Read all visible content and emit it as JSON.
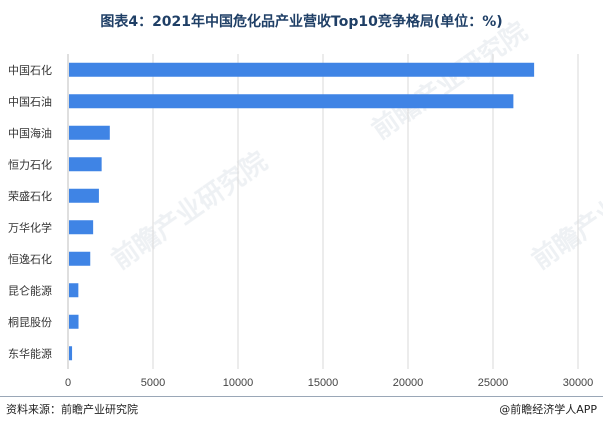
{
  "title": "图表4：2021年中国危化品产业营收Top10竞争格局(单位：%)",
  "source": "资料来源：前瞻产业研究院",
  "brand": "@前瞻经济学人APP",
  "watermark_text": "前瞻产业研究院",
  "colors": {
    "bar": "#3f84e5",
    "grid": "#d9d9d9",
    "axis": "#bfbfbf"
  },
  "chart_data": {
    "type": "bar",
    "orientation": "horizontal",
    "categories": [
      "中国石化",
      "中国石油",
      "中国海油",
      "恒力石化",
      "荣盛石化",
      "万华化学",
      "恒逸石化",
      "昆仑能源",
      "桐昆股份",
      "东华能源"
    ],
    "values": [
      27360,
      26140,
      2400,
      1920,
      1760,
      1420,
      1250,
      550,
      560,
      180
    ],
    "xticks": [
      "0",
      "5000",
      "10000",
      "15000",
      "20000",
      "25000",
      "30000"
    ],
    "xlim": [
      0,
      30000
    ],
    "grid": true
  }
}
